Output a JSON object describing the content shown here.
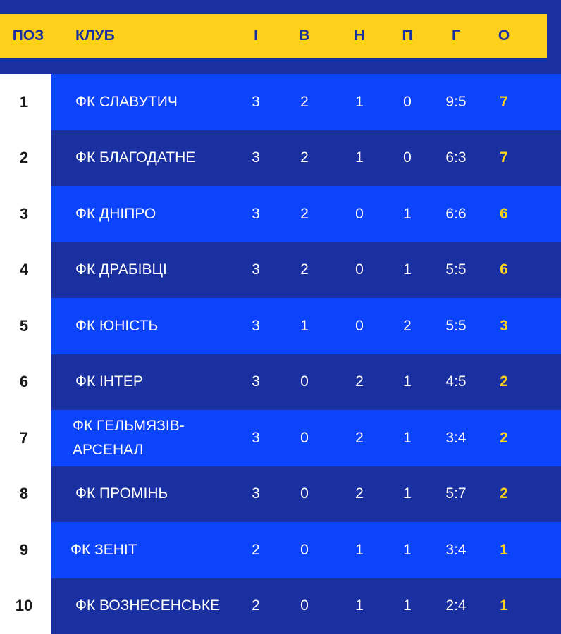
{
  "header": {
    "pos": "ПОЗ",
    "club": "КЛУБ",
    "played": "І",
    "wins": "В",
    "draws": "Н",
    "losses": "П",
    "goals": "Г",
    "points": "О"
  },
  "rows": [
    {
      "pos": "1",
      "club": "ФК СЛАВУТИЧ",
      "played": "3",
      "wins": "2",
      "draws": "1",
      "losses": "0",
      "goals": "9:5",
      "points": "7"
    },
    {
      "pos": "2",
      "club": "ФК БЛАГОДАТНЕ",
      "played": "3",
      "wins": "2",
      "draws": "1",
      "losses": "0",
      "goals": "6:3",
      "points": "7"
    },
    {
      "pos": "3",
      "club": "ФК ДНІПРО",
      "played": "3",
      "wins": "2",
      "draws": "0",
      "losses": "1",
      "goals": "6:6",
      "points": "6"
    },
    {
      "pos": "4",
      "club": "ФК ДРАБІВЦІ",
      "played": "3",
      "wins": "2",
      "draws": "0",
      "losses": "1",
      "goals": "5:5",
      "points": "6"
    },
    {
      "pos": "5",
      "club": "ФК ЮНІСТЬ",
      "played": "3",
      "wins": "1",
      "draws": "0",
      "losses": "2",
      "goals": "5:5",
      "points": "3"
    },
    {
      "pos": "6",
      "club": "ФК ІНТЕР",
      "played": "3",
      "wins": "0",
      "draws": "2",
      "losses": "1",
      "goals": "4:5",
      "points": "2"
    },
    {
      "pos": "7",
      "club": "ФК ГЕЛЬМЯЗІВ-АРСЕНАЛ",
      "club_line1": "ФК ГЕЛЬМЯЗІВ-",
      "club_line2": "АРСЕНАЛ",
      "played": "3",
      "wins": "0",
      "draws": "2",
      "losses": "1",
      "goals": "3:4",
      "points": "2"
    },
    {
      "pos": "8",
      "club": "ФК ПРОМІНЬ",
      "played": "3",
      "wins": "0",
      "draws": "2",
      "losses": "1",
      "goals": "5:7",
      "points": "2"
    },
    {
      "pos": "9",
      "club": "ФК ЗЕНІТ",
      "played": "2",
      "wins": "0",
      "draws": "1",
      "losses": "1",
      "goals": "3:4",
      "points": "1"
    },
    {
      "pos": "10",
      "club": "ФК ВОЗНЕСЕНСЬКЕ",
      "played": "2",
      "wins": "0",
      "draws": "1",
      "losses": "1",
      "goals": "2:4",
      "points": "1"
    }
  ],
  "colors": {
    "header_bg": "#fdd01c",
    "header_text": "#1a2fa0",
    "row_light": "#0c44fb",
    "row_dark": "#1a2fa0",
    "points_text": "#fdd01c",
    "pos_strip": "#ffffff"
  }
}
